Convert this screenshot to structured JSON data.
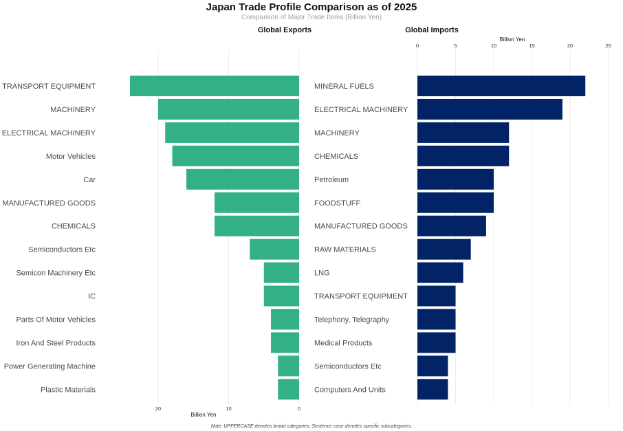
{
  "title": "Japan Trade Profile Comparison as of 2025",
  "subtitle": "Comparison of Major Trade Items (Billion Yen)",
  "note": "Note: UPPERCASE denotes broad categories; Sentence case denotes specific subcategories.",
  "colors": {
    "exports": "#33b084",
    "imports": "#022466"
  },
  "chart_data": [
    {
      "type": "bar",
      "orientation": "horizontal",
      "direction": "reversed",
      "title": "Global Exports",
      "xlabel": "Billion Yen",
      "xlim": [
        0,
        25
      ],
      "ticks": [
        0,
        10,
        20
      ],
      "categories": [
        "TRANSPORT EQUIPMENT",
        "MACHINERY",
        "ELECTRICAL MACHINERY",
        "Motor Vehicles",
        "Car",
        "MANUFACTURED GOODS",
        "CHEMICALS",
        "Semiconductors Etc",
        "Semicon Machinery Etc",
        "IC",
        "Parts Of Motor Vehicles",
        "Iron And Steel Products",
        "Power Generating Machine",
        "Plastic Materials"
      ],
      "values": [
        24,
        20,
        19,
        18,
        16,
        12,
        12,
        7,
        5,
        5,
        4,
        4,
        3,
        3
      ]
    },
    {
      "type": "bar",
      "orientation": "horizontal",
      "title": "Global Imports",
      "xlabel": "Billion Yen",
      "xlim": [
        0,
        25
      ],
      "ticks": [
        0,
        5,
        10,
        15,
        20,
        25
      ],
      "categories": [
        "MINERAL FUELS",
        "ELECTRICAL MACHINERY",
        "MACHINERY",
        "CHEMICALS",
        "Petroleum",
        "FOODSTUFF",
        "MANUFACTURED GOODS",
        "RAW MATERIALS",
        "LNG",
        "TRANSPORT EQUIPMENT",
        "Telephony, Telegraphy",
        "Medical Products",
        "Semiconductors Etc",
        "Computers And Units"
      ],
      "values": [
        22,
        19,
        12,
        12,
        10,
        10,
        9,
        7,
        6,
        5,
        5,
        5,
        4,
        4
      ]
    }
  ]
}
